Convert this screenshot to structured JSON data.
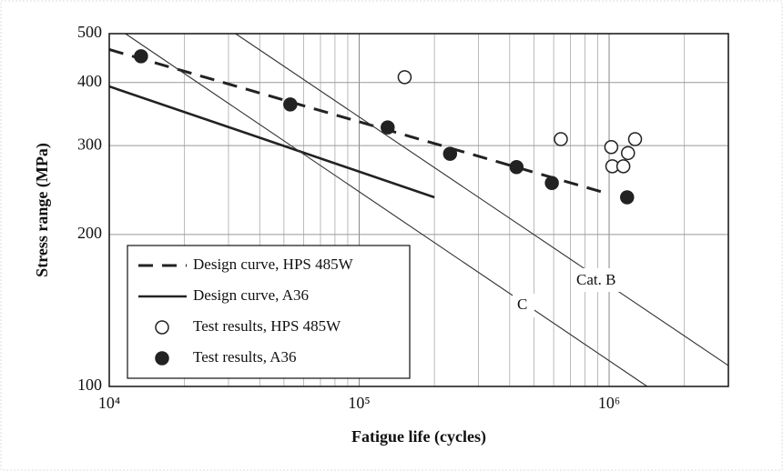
{
  "chart_data": {
    "type": "line",
    "xlabel": "Fatigue life (cycles)",
    "ylabel": "Stress range (MPa)",
    "xscale": "log",
    "yscale": "log",
    "xlim": [
      10000,
      3000000
    ],
    "ylim": [
      100,
      500
    ],
    "xticks": [
      {
        "value": 10000,
        "label": "10⁴"
      },
      {
        "value": 100000,
        "label": "10⁵"
      },
      {
        "value": 1000000,
        "label": "10⁶"
      }
    ],
    "xminorticks": [
      20000,
      30000,
      40000,
      50000,
      60000,
      70000,
      80000,
      90000,
      200000,
      300000,
      400000,
      500000,
      600000,
      700000,
      800000,
      900000,
      2000000
    ],
    "yticks": [
      100,
      200,
      300,
      400,
      500
    ],
    "grid": true,
    "legend": "lower left",
    "series": [
      {
        "name": "Design curve, HPS 485W",
        "kind": "line",
        "style": "dashed",
        "color": "#222222",
        "legend": true,
        "x": [
          10000,
          960000
        ],
        "values": [
          465,
          242
        ]
      },
      {
        "name": "Design curve, A36",
        "kind": "line",
        "style": "solid",
        "color": "#222222",
        "legend": true,
        "x": [
          10000,
          200000
        ],
        "values": [
          393,
          237
        ]
      },
      {
        "name": "Test results, HPS 485W",
        "kind": "scatter",
        "marker": "open",
        "color": "#222222",
        "legend": true,
        "x": [
          152000,
          641000,
          1020000,
          1270000,
          1030000,
          1140000,
          1190000
        ],
        "values": [
          410,
          309,
          298,
          309,
          273,
          273,
          290
        ]
      },
      {
        "name": "Test results, A36",
        "kind": "scatter",
        "marker": "filled",
        "color": "#222222",
        "legend": true,
        "x": [
          13400,
          53000,
          130000,
          231000,
          426000,
          590000,
          1180000
        ],
        "values": [
          451,
          362,
          326,
          289,
          272,
          253,
          237
        ]
      },
      {
        "name": "Cat. B",
        "kind": "line",
        "style": "thin",
        "color": "#333333",
        "legend": false,
        "x": [
          32000,
          3000000
        ],
        "values": [
          500,
          110
        ]
      },
      {
        "name": "C",
        "kind": "line",
        "style": "thin",
        "color": "#333333",
        "legend": false,
        "x": [
          11600,
          1420000
        ],
        "values": [
          500,
          100
        ]
      }
    ]
  }
}
